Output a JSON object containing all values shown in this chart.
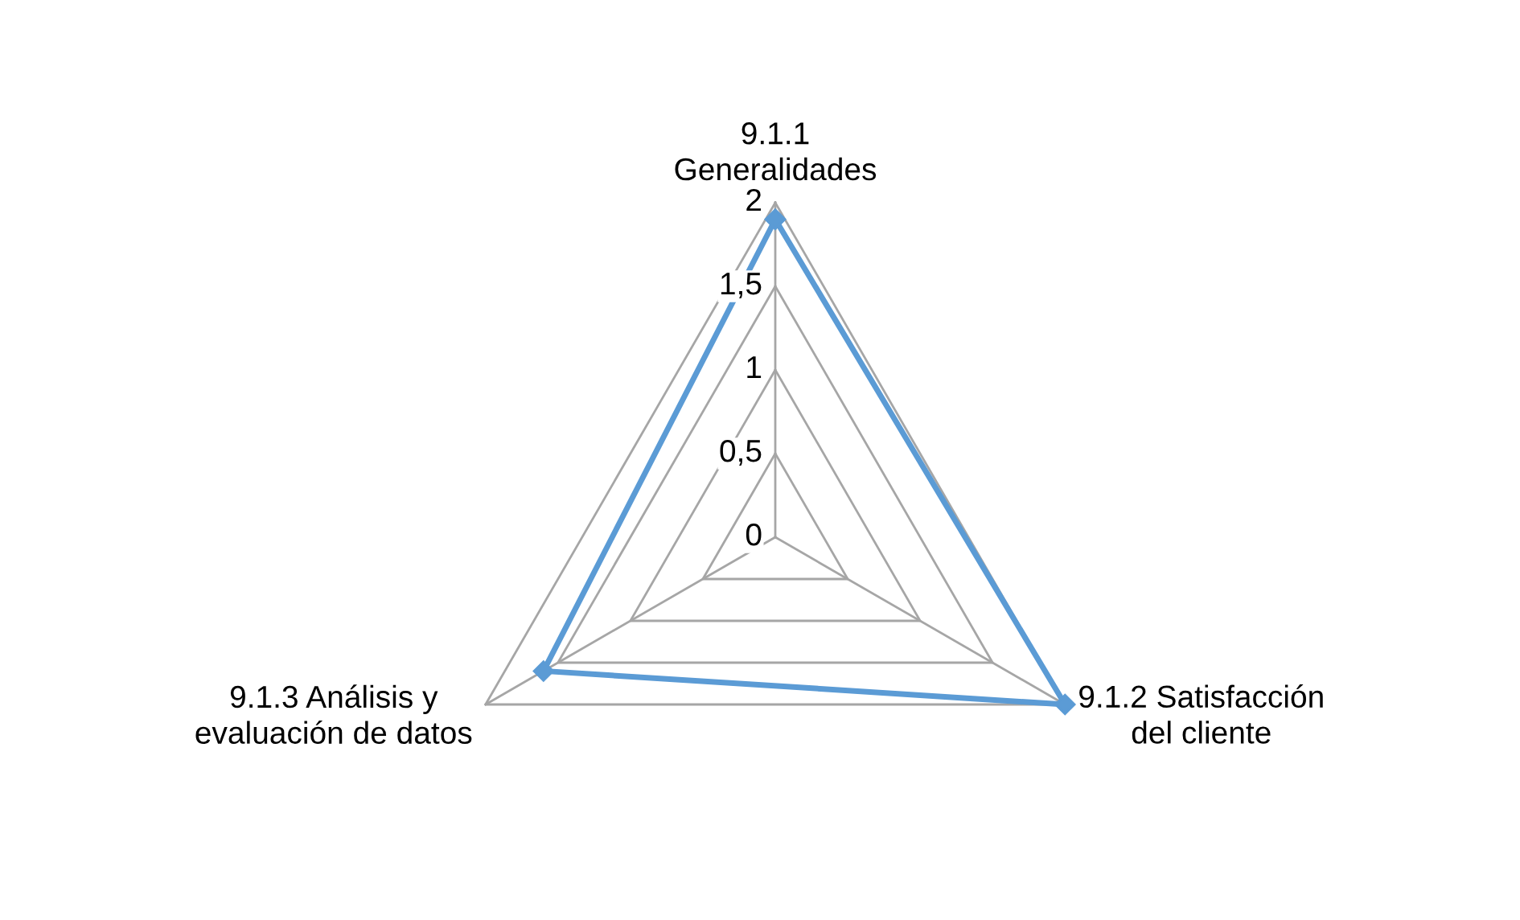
{
  "chart_data": {
    "type": "radar",
    "categories": [
      "9.1.1\nGeneralidades",
      "9.1.2 Satisfacción\ndel cliente",
      "9.1.3 Análisis y\nevaluación de datos"
    ],
    "series": [
      {
        "color": "#5b9bd5",
        "values": [
          1.9,
          2,
          1.6
        ]
      }
    ],
    "ylim": [
      0,
      2
    ],
    "yticks": [
      0,
      {
        "value": 0.5,
        "label": "0,5"
      },
      1,
      {
        "value": 1.5,
        "label": "1,5"
      },
      2
    ],
    "marker": "diamond",
    "grid": true
  }
}
